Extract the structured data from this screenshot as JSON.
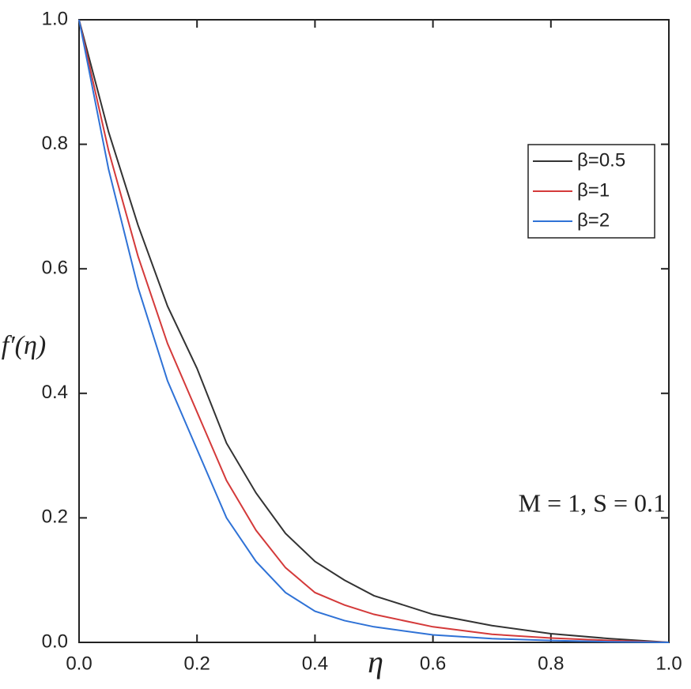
{
  "chart_data": {
    "type": "line",
    "x_label": "η",
    "y_label": "f′(η)",
    "annotation": "M = 1, S = 0.1",
    "x": [
      0,
      0.05,
      0.1,
      0.15,
      0.2,
      0.25,
      0.3,
      0.35,
      0.4,
      0.45,
      0.5,
      0.6,
      0.7,
      0.8,
      0.9,
      1.0
    ],
    "series": [
      {
        "name": "β=0.5",
        "color": "#333333",
        "values": [
          1,
          0.82,
          0.67,
          0.54,
          0.44,
          0.32,
          0.24,
          0.175,
          0.13,
          0.1,
          0.075,
          0.045,
          0.027,
          0.014,
          0.006,
          0
        ]
      },
      {
        "name": "β=1",
        "color": "#d43a3a",
        "values": [
          1,
          0.79,
          0.62,
          0.48,
          0.37,
          0.26,
          0.18,
          0.12,
          0.08,
          0.06,
          0.045,
          0.025,
          0.013,
          0.007,
          0.003,
          0
        ]
      },
      {
        "name": "β=2",
        "color": "#2f72d6",
        "values": [
          1,
          0.76,
          0.57,
          0.42,
          0.31,
          0.2,
          0.13,
          0.08,
          0.05,
          0.035,
          0.025,
          0.012,
          0.006,
          0.003,
          0.001,
          0
        ]
      }
    ],
    "xlim": [
      0,
      1
    ],
    "ylim": [
      0,
      1
    ],
    "xticks": [
      {
        "value": 0,
        "label": "0.0"
      },
      {
        "value": 0.2,
        "label": "0.2"
      },
      {
        "value": 0.4,
        "label": "0.4"
      },
      {
        "value": 0.6,
        "label": "0.6"
      },
      {
        "value": 0.8,
        "label": "0.8"
      },
      {
        "value": 1,
        "label": "1.0"
      }
    ],
    "yticks": [
      {
        "value": 0,
        "label": "0.0"
      },
      {
        "value": 0.2,
        "label": "0.2"
      },
      {
        "value": 0.4,
        "label": "0.4"
      },
      {
        "value": 0.6,
        "label": "0.6"
      },
      {
        "value": 0.8,
        "label": "0.8"
      },
      {
        "value": 1,
        "label": "1.0"
      }
    ],
    "legend": "upper right"
  }
}
